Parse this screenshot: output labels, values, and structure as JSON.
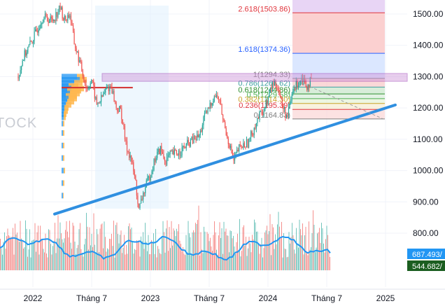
{
  "chart_data": {
    "type": "candlestick",
    "y_axis": {
      "ticks": [
        "1500.00",
        "1400.00",
        "1300.00",
        "1200.00",
        "1100.00",
        "1000.00",
        "900.00",
        "800.00"
      ],
      "values": [
        1500,
        1400,
        1300,
        1200,
        1100,
        1000,
        900,
        800
      ],
      "ylim": [
        700,
        1530
      ]
    },
    "x_axis": {
      "ticks": [
        "2022",
        "Tháng 7",
        "2023",
        "Tháng 7",
        "2024",
        "Tháng 7",
        "2025"
      ],
      "positions_months": [
        0,
        6,
        12,
        18,
        24,
        30,
        36
      ],
      "range_months": [
        -1.5,
        39.5
      ]
    },
    "price_path": [
      [
        -1.5,
        1300
      ],
      [
        -1,
        1360
      ],
      [
        0,
        1420
      ],
      [
        1,
        1490
      ],
      [
        2,
        1480
      ],
      [
        2.8,
        1520
      ],
      [
        3.2,
        1480
      ],
      [
        3.8,
        1500
      ],
      [
        4.2,
        1410
      ],
      [
        5,
        1320
      ],
      [
        5.5,
        1260
      ],
      [
        6,
        1290
      ],
      [
        6.5,
        1210
      ],
      [
        7,
        1230
      ],
      [
        7.5,
        1260
      ],
      [
        8,
        1270
      ],
      [
        8.5,
        1200
      ],
      [
        9,
        1190
      ],
      [
        9.5,
        1080
      ],
      [
        10,
        1040
      ],
      [
        10.5,
        960
      ],
      [
        10.8,
        870
      ],
      [
        11.2,
        920
      ],
      [
        12,
        990
      ],
      [
        12.5,
        1040
      ],
      [
        13,
        1070
      ],
      [
        13.5,
        1030
      ],
      [
        14,
        1050
      ],
      [
        15,
        1060
      ],
      [
        16,
        1090
      ],
      [
        17,
        1110
      ],
      [
        17.5,
        1170
      ],
      [
        18,
        1200
      ],
      [
        18.5,
        1240
      ],
      [
        19,
        1230
      ],
      [
        19.5,
        1150
      ],
      [
        20,
        1090
      ],
      [
        20.5,
        1030
      ],
      [
        21,
        1070
      ],
      [
        22,
        1090
      ],
      [
        22.5,
        1130
      ],
      [
        23,
        1170
      ],
      [
        23.5,
        1190
      ],
      [
        24,
        1230
      ],
      [
        24.5,
        1280
      ],
      [
        25,
        1270
      ],
      [
        25.5,
        1200
      ],
      [
        26,
        1170
      ],
      [
        26.5,
        1250
      ],
      [
        27,
        1280
      ],
      [
        27.5,
        1300
      ],
      [
        28,
        1270
      ],
      [
        28.5,
        1290
      ]
    ],
    "volume_profile_months": [
      -1.5,
      28.5
    ],
    "fib_levels": [
      {
        "label": "2.618(1503.86)",
        "value": 1503.86,
        "color": "#e0353d"
      },
      {
        "label": "1.618(1374.36)",
        "value": 1374.36,
        "color": "#2962ff"
      },
      {
        "label": "1(1294.33)",
        "value": 1294.33,
        "color": "#7f7f7f"
      },
      {
        "label": "0.786(1266.62)",
        "value": 1266.62,
        "color": "#3fa1a1"
      },
      {
        "label": "0.618(1244.86)",
        "value": 1244.86,
        "color": "#2f8f2f"
      },
      {
        "label": "0.5(1229.58)",
        "value": 1229.58,
        "color": "#4caf50"
      },
      {
        "label": "0.382(1214.30)",
        "value": 1214.3,
        "color": "#c9a227"
      },
      {
        "label": "0.236(1195.39)",
        "value": 1195.39,
        "color": "#e0353d"
      },
      {
        "label": "0(1164.83)",
        "value": 1164.83,
        "color": "#7f7f7f"
      }
    ],
    "resistance_zone": [
      1285,
      1310
    ],
    "poc_price": 1265,
    "trendline": [
      [
        7.5,
        870
      ],
      [
        34,
        1205
      ]
    ],
    "projection": [
      [
        27.5,
        1280
      ],
      [
        33,
        1170
      ]
    ],
    "ma_values": [
      {
        "label": "687.493/",
        "color": "#2196f3"
      },
      {
        "label": "544.682/",
        "color": "#1b5e20"
      }
    ],
    "watermark": "TOCK"
  }
}
